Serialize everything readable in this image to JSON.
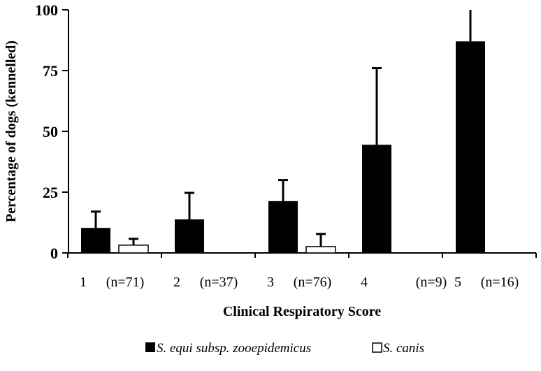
{
  "chart_data": {
    "type": "bar",
    "title": "",
    "xlabel": "Clinical Respiratory Score",
    "ylabel": "Percentage of dogs (kennelled)",
    "ylim": [
      0,
      100
    ],
    "yticks": [
      "0",
      "25",
      "50",
      "75",
      "100"
    ],
    "categories": [
      "1",
      "2",
      "3",
      "4",
      "5"
    ],
    "category_n": [
      "(n=71)",
      "(n=37)",
      "(n=76)",
      "(n=9)",
      "(n=16)"
    ],
    "series": [
      {
        "name": "S. equi subsp. zooepidemicus",
        "fill": "#000000",
        "values": [
          10.3,
          13.8,
          21.3,
          44.5,
          87
        ],
        "error_upper": [
          17,
          24.7,
          30,
          76,
          100
        ]
      },
      {
        "name": "S. canis",
        "fill": "#ffffff",
        "values": [
          3.2,
          0,
          2.6,
          0,
          0
        ],
        "error_upper": [
          5.8,
          0,
          7.8,
          0,
          0
        ]
      }
    ],
    "grid": false,
    "legend_position": "bottom"
  }
}
